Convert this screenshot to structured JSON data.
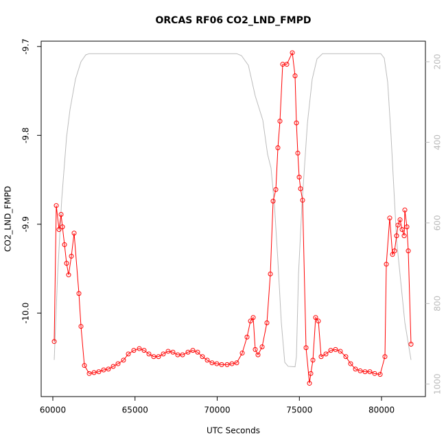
{
  "chart_data": {
    "type": "line",
    "title": "ORCAS RF06 CO2_LND_FMPD",
    "x_label": "UTC Seconds",
    "y_label": "CO2_LND_FMPD",
    "xlim": [
      59290,
      82670
    ],
    "xticks": [
      60000,
      65000,
      70000,
      75000,
      80000
    ],
    "ylim": [
      -10.094,
      -9.694
    ],
    "yticks": [
      -9.7,
      -9.8,
      -9.9,
      {
        "value": -10,
        "label": "-10.0"
      }
    ],
    "y2lim": [
      1031,
      149
    ],
    "y2ticks": [
      200,
      400,
      600,
      800,
      1000
    ],
    "y2_color": "#bbbbbb",
    "series": [
      {
        "color": "#ff0000",
        "markers": true,
        "x": [
          60084,
          60209,
          60376,
          60501,
          60585,
          60710,
          60835,
          60960,
          61127,
          61294,
          61587,
          61712,
          61921,
          62213,
          62505,
          62797,
          63090,
          63382,
          63674,
          63966,
          64300,
          64593,
          64927,
          65261,
          65553,
          65845,
          66137,
          66430,
          66722,
          67014,
          67306,
          67599,
          67891,
          68225,
          68517,
          68809,
          69102,
          69394,
          69686,
          69978,
          70271,
          70605,
          70897,
          71189,
          71523,
          71815,
          72024,
          72191,
          72316,
          72483,
          72734,
          73026,
          73235,
          73402,
          73569,
          73694,
          73819,
          73986,
          74237,
          74571,
          74738,
          74821,
          74905,
          74989,
          75072,
          75197,
          75406,
          75615,
          75698,
          75824,
          75991,
          76158,
          76325,
          76617,
          76909,
          77201,
          77493,
          77827,
          78120,
          78412,
          78704,
          78996,
          79289,
          79581,
          79915,
          80207,
          80291,
          80500,
          80667,
          80792,
          80917,
          81000,
          81126,
          81251,
          81376,
          81418,
          81543,
          81627,
          81794
        ],
        "values": [
          -10.032,
          -9.879,
          -9.906,
          -9.889,
          -9.903,
          -9.923,
          -9.944,
          -9.957,
          -9.936,
          -9.91,
          -9.978,
          -10.015,
          -10.059,
          -10.068,
          -10.067,
          -10.066,
          -10.064,
          -10.063,
          -10.06,
          -10.057,
          -10.053,
          -10.046,
          -10.042,
          -10.04,
          -10.042,
          -10.046,
          -10.049,
          -10.049,
          -10.046,
          -10.043,
          -10.044,
          -10.047,
          -10.047,
          -10.044,
          -10.042,
          -10.044,
          -10.049,
          -10.053,
          -10.056,
          -10.057,
          -10.058,
          -10.058,
          -10.057,
          -10.056,
          -10.045,
          -10.027,
          -10.009,
          -10.005,
          -10.041,
          -10.047,
          -10.038,
          -10.011,
          -9.956,
          -9.874,
          -9.861,
          -9.814,
          -9.784,
          -9.72,
          -9.72,
          -9.707,
          -9.733,
          -9.786,
          -9.82,
          -9.847,
          -9.86,
          -9.873,
          -10.039,
          -10.079,
          -10.068,
          -10.053,
          -10.005,
          -10.009,
          -10.049,
          -10.046,
          -10.042,
          -10.041,
          -10.043,
          -10.049,
          -10.057,
          -10.063,
          -10.065,
          -10.066,
          -10.066,
          -10.068,
          -10.069,
          -10.049,
          -9.945,
          -9.893,
          -9.934,
          -9.93,
          -9.913,
          -9.901,
          -9.895,
          -9.906,
          -9.913,
          -9.884,
          -9.903,
          -9.93,
          -10.035
        ]
      },
      {
        "color": "#bbbbbb",
        "axis": "y2",
        "markers": false,
        "x": [
          60084,
          60292,
          60543,
          60835,
          61044,
          61378,
          61712,
          62004,
          62213,
          71189,
          71481,
          71899,
          72316,
          72776,
          73068,
          73277,
          73486,
          73694,
          73903,
          74112,
          74321,
          74738,
          74821,
          74947,
          75155,
          75489,
          75782,
          76074,
          76408,
          79956,
          80165,
          80374,
          80583,
          80917,
          81418,
          81794
        ],
        "values": [
          940,
          728,
          540,
          387,
          319,
          243,
          200,
          183,
          180,
          180,
          185,
          209,
          285,
          345,
          430,
          464,
          557,
          694,
          847,
          946,
          956,
          957,
          932,
          728,
          557,
          353,
          243,
          193,
          180,
          180,
          191,
          251,
          387,
          643,
          847,
          940
        ]
      }
    ]
  }
}
